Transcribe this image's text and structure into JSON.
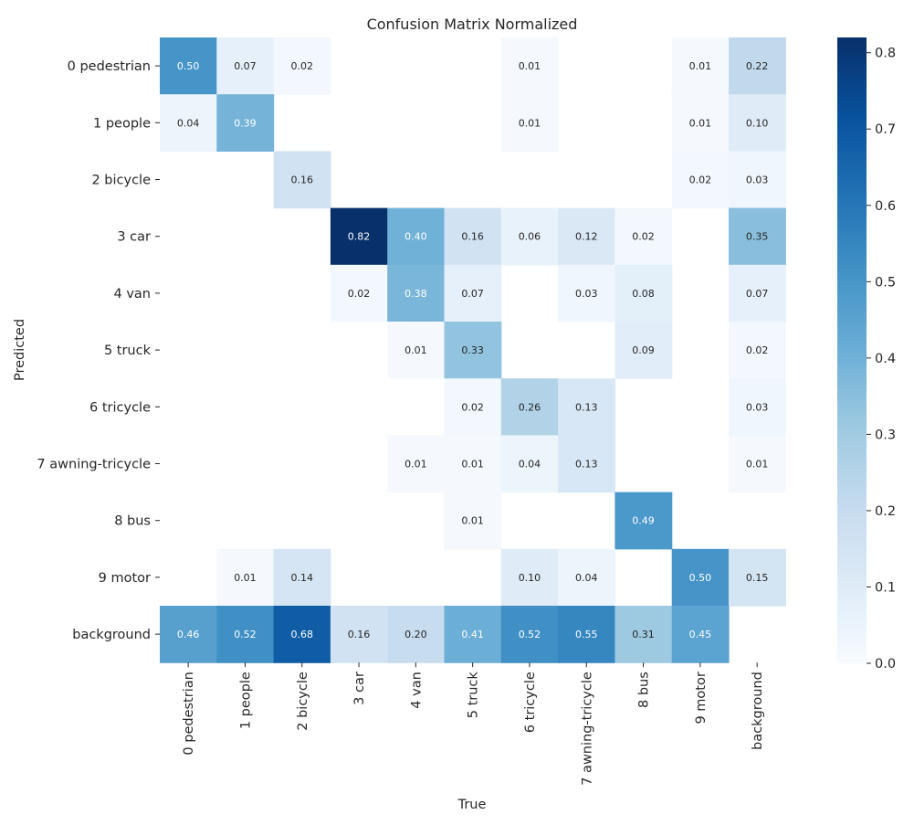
{
  "chart_data": {
    "type": "heatmap",
    "title": "Confusion Matrix Normalized",
    "xlabel": "True",
    "ylabel": "Predicted",
    "x_categories": [
      "0 pedestrian",
      "1 people",
      "2 bicycle",
      "3 car",
      "4 van",
      "5 truck",
      "6 tricycle",
      "7 awning-tricycle",
      "8 bus",
      "9 motor",
      "background"
    ],
    "y_categories": [
      "0 pedestrian",
      "1 people",
      "2 bicycle",
      "3 car",
      "4 van",
      "5 truck",
      "6 tricycle",
      "7 awning-tricycle",
      "8 bus",
      "9 motor",
      "background"
    ],
    "values": [
      [
        0.5,
        0.07,
        0.02,
        null,
        null,
        null,
        0.01,
        null,
        null,
        0.01,
        0.22
      ],
      [
        0.04,
        0.39,
        null,
        null,
        null,
        null,
        0.01,
        null,
        null,
        0.01,
        0.1
      ],
      [
        null,
        null,
        0.16,
        null,
        null,
        null,
        null,
        null,
        null,
        0.02,
        0.03
      ],
      [
        null,
        null,
        null,
        0.82,
        0.4,
        0.16,
        0.06,
        0.12,
        0.02,
        null,
        0.35
      ],
      [
        null,
        null,
        null,
        0.02,
        0.38,
        0.07,
        null,
        0.03,
        0.08,
        null,
        0.07
      ],
      [
        null,
        null,
        null,
        null,
        0.01,
        0.33,
        null,
        null,
        0.09,
        null,
        0.02
      ],
      [
        null,
        null,
        null,
        null,
        null,
        0.02,
        0.26,
        0.13,
        null,
        null,
        0.03
      ],
      [
        null,
        null,
        null,
        null,
        0.01,
        0.01,
        0.04,
        0.13,
        null,
        null,
        0.01
      ],
      [
        null,
        null,
        null,
        null,
        null,
        0.01,
        null,
        null,
        0.49,
        null,
        null
      ],
      [
        null,
        0.01,
        0.14,
        null,
        null,
        null,
        0.1,
        0.04,
        null,
        0.5,
        0.15
      ],
      [
        0.46,
        0.52,
        0.68,
        0.16,
        0.2,
        0.41,
        0.52,
        0.55,
        0.31,
        0.45,
        null
      ]
    ],
    "colorbar": {
      "range": [
        0,
        0.82
      ],
      "ticks": [
        0.0,
        0.1,
        0.2,
        0.3,
        0.4,
        0.5,
        0.6,
        0.7,
        0.8
      ],
      "tick_labels": [
        "0.0",
        "0.1",
        "0.2",
        "0.3",
        "0.4",
        "0.5",
        "0.6",
        "0.7",
        "0.8"
      ],
      "colormap": "Blues",
      "colors": [
        "#f7fbff",
        "#deebf7",
        "#c6dbef",
        "#9ecae1",
        "#6baed6",
        "#4292c6",
        "#2171b5",
        "#08519c",
        "#08306b"
      ]
    },
    "label_color_dark": "#262626",
    "label_color_light": "#ffffff"
  }
}
